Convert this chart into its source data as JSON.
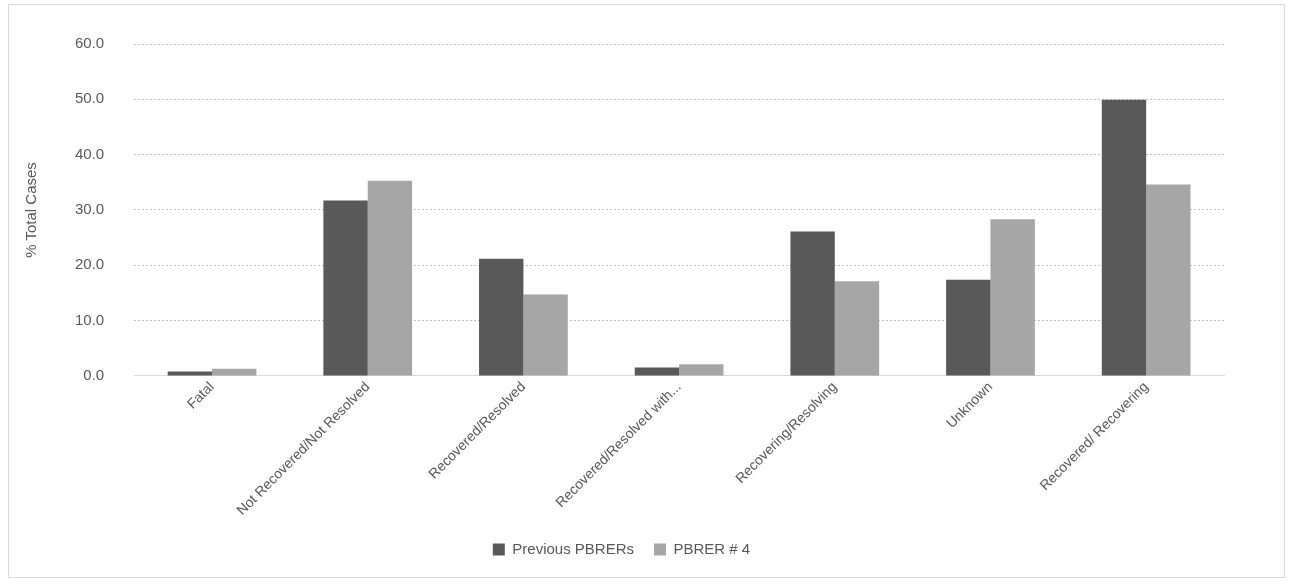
{
  "chart_data": {
    "type": "bar",
    "ylabel": "% Total Cases",
    "categories": [
      "Fatal",
      "Not Recovered/Not Resolved",
      "Recovered/Resolved",
      "Recovered/Resolved with...",
      "Recovering/Resolving",
      "Unknown",
      "Recovered/ Recovering"
    ],
    "series": [
      {
        "name": "Previous PBRERs",
        "color": "#595959",
        "values": [
          0.8,
          31.7,
          21.2,
          1.5,
          26.1,
          17.4,
          49.9
        ]
      },
      {
        "name": "PBRER # 4",
        "color": "#a6a6a6",
        "values": [
          1.3,
          35.3,
          14.7,
          2.1,
          17.1,
          28.3,
          34.6
        ]
      }
    ],
    "ylim": [
      0,
      60
    ],
    "yticks": [
      {
        "value": 0,
        "label": "0.0"
      },
      {
        "value": 10,
        "label": "10.0"
      },
      {
        "value": 20,
        "label": "20.0"
      },
      {
        "value": 30,
        "label": "30.0"
      },
      {
        "value": 40,
        "label": "40.0"
      },
      {
        "value": 50,
        "label": "50.0"
      },
      {
        "value": 60,
        "label": "60.0"
      }
    ],
    "grid": "y",
    "legend": "bottom"
  }
}
